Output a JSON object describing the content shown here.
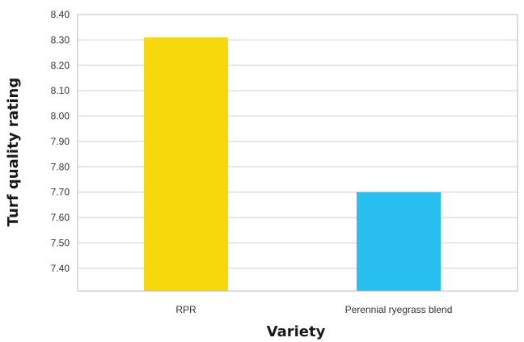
{
  "chart_data": {
    "type": "bar",
    "categories": [
      "RPR",
      "Perennial ryegrass blend"
    ],
    "values": [
      8.31,
      7.7
    ],
    "colors": [
      "#f7d80c",
      "#29bff0"
    ],
    "xlabel": "Variety",
    "ylabel": "Turf quality rating",
    "ylim": [
      7.31,
      8.4
    ],
    "yticks": [
      "8.40",
      "8.30",
      "8.20",
      "8.10",
      "8.00",
      "7.90",
      "7.80",
      "7.70",
      "7.60",
      "7.50",
      "7.40"
    ],
    "ytick_values": [
      8.4,
      8.3,
      8.2,
      8.1,
      8.0,
      7.9,
      7.8,
      7.7,
      7.6,
      7.5,
      7.4
    ],
    "grid": true
  }
}
